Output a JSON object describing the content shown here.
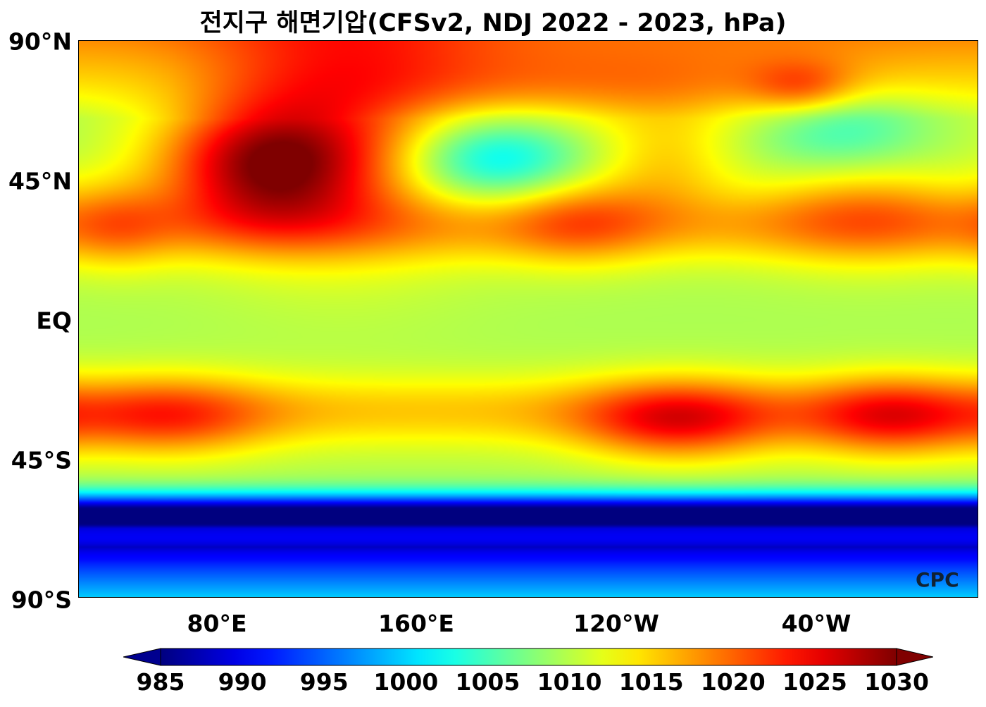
{
  "title": "전지구 해면기압(CFSv2, NDJ 2022 - 2023, hPa)",
  "lat_labels": [
    "90°N",
    "45°N",
    "EQ",
    "45°S",
    "90°S"
  ],
  "lon_labels": [
    "80°E",
    "160°E",
    "120°W",
    "40°W"
  ],
  "logo": "CPC",
  "colorbar": {
    "colormap": "jet",
    "min": 985,
    "max": 1030,
    "extend": "both",
    "ticks": [
      "985",
      "990",
      "995",
      "1000",
      "1005",
      "1010",
      "1015",
      "1020",
      "1025",
      "1030"
    ]
  }
}
